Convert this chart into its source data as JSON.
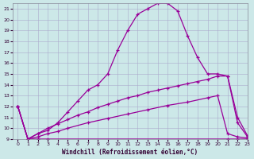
{
  "xlabel": "Windchill (Refroidissement éolien,°C)",
  "background_color": "#cce8e8",
  "grid_color": "#aaaacc",
  "line_color": "#990099",
  "xlim": [
    -0.5,
    23
  ],
  "ylim": [
    9,
    21.5
  ],
  "xticks": [
    0,
    1,
    2,
    3,
    4,
    5,
    6,
    7,
    8,
    9,
    10,
    11,
    12,
    13,
    14,
    15,
    16,
    17,
    18,
    19,
    20,
    21,
    22,
    23
  ],
  "yticks": [
    9,
    10,
    11,
    12,
    13,
    14,
    15,
    16,
    17,
    18,
    19,
    20,
    21
  ],
  "lines": [
    {
      "x": [
        0,
        1,
        2,
        3,
        21,
        22,
        23
      ],
      "y": [
        12,
        9,
        9,
        9,
        9,
        9,
        9
      ]
    },
    {
      "x": [
        0,
        1,
        2,
        3,
        4,
        5,
        7,
        9,
        11,
        13,
        15,
        17,
        19,
        20,
        21,
        22,
        23
      ],
      "y": [
        12,
        9,
        9.2,
        9.5,
        9.7,
        10.0,
        10.5,
        10.9,
        11.3,
        11.7,
        12.1,
        12.4,
        12.8,
        13.0,
        9.5,
        9.2,
        9.1
      ]
    },
    {
      "x": [
        0,
        1,
        2,
        3,
        4,
        5,
        6,
        7,
        8,
        9,
        10,
        11,
        12,
        13,
        14,
        15,
        16,
        17,
        18,
        19,
        20,
        21,
        22,
        23
      ],
      "y": [
        12,
        9,
        9.5,
        10.0,
        10.4,
        10.8,
        11.2,
        11.5,
        11.9,
        12.2,
        12.5,
        12.8,
        13.0,
        13.3,
        13.5,
        13.7,
        13.9,
        14.1,
        14.3,
        14.5,
        14.8,
        14.8,
        11.0,
        9.3
      ]
    },
    {
      "x": [
        0,
        1,
        2,
        3,
        4,
        5,
        6,
        7,
        8,
        9,
        10,
        11,
        12,
        13,
        14,
        15,
        16,
        17,
        18,
        19,
        20,
        21,
        22,
        23
      ],
      "y": [
        12,
        9,
        9.5,
        9.8,
        10.5,
        11.5,
        12.5,
        13.5,
        14.0,
        15.0,
        17.2,
        19.0,
        20.5,
        21.0,
        21.5,
        21.5,
        20.8,
        18.5,
        16.5,
        15.0,
        15.0,
        14.8,
        10.5,
        9.2
      ]
    }
  ]
}
